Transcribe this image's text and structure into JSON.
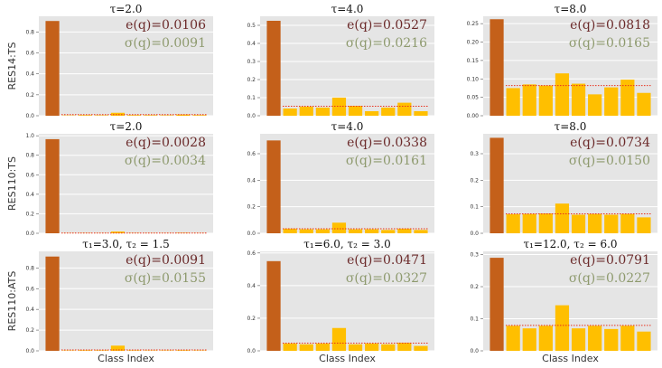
{
  "rows": [
    {
      "label": "RES14:TS"
    },
    {
      "label": "RES110:TS"
    },
    {
      "label": "RES110:ATS"
    }
  ],
  "xlabel": "Class Index",
  "colors": {
    "background": "#e5e5e5",
    "gridline": "#ffffff",
    "first_bar": "#c4601a",
    "other_bars": "#ffbf00",
    "mean_line": "#e8321e",
    "eq_text": "#6b2a2a",
    "sigma_text": "#8e9a6e"
  },
  "chart_data": [
    {
      "type": "bar",
      "row": 0,
      "col": 0,
      "title": "τ=2.0",
      "ylim": [
        0,
        0.95
      ],
      "yticks": [
        0.0,
        0.2,
        0.4,
        0.6,
        0.8
      ],
      "yticklabels": [
        "0.0",
        "0.2",
        "0.4",
        "0.6",
        "0.8"
      ],
      "values": [
        0.905,
        0.003,
        0.006,
        0.004,
        0.028,
        0.006,
        0.005,
        0.004,
        0.012,
        0.006
      ],
      "mean_line": 0.0106,
      "e_q": "e(q)=0.0106",
      "sigma_q": "σ(q)=0.0091"
    },
    {
      "type": "bar",
      "row": 0,
      "col": 1,
      "title": "τ=4.0",
      "ylim": [
        0,
        0.55
      ],
      "yticks": [
        0.0,
        0.1,
        0.2,
        0.3,
        0.4,
        0.5
      ],
      "yticklabels": [
        "0.0",
        "0.1",
        "0.2",
        "0.3",
        "0.4",
        "0.5"
      ],
      "values": [
        0.525,
        0.04,
        0.05,
        0.045,
        0.1,
        0.055,
        0.025,
        0.045,
        0.072,
        0.025
      ],
      "mean_line": 0.0527,
      "e_q": "e(q)=0.0527",
      "sigma_q": "σ(q)=0.0216"
    },
    {
      "type": "bar",
      "row": 0,
      "col": 2,
      "title": "τ=8.0",
      "ylim": [
        0,
        0.27
      ],
      "yticks": [
        0.0,
        0.05,
        0.1,
        0.15,
        0.2,
        0.25
      ],
      "yticklabels": [
        "0.00",
        "0.05",
        "0.10",
        "0.15",
        "0.20",
        "0.25"
      ],
      "values": [
        0.262,
        0.075,
        0.085,
        0.082,
        0.115,
        0.087,
        0.058,
        0.077,
        0.098,
        0.062
      ],
      "mean_line": 0.0818,
      "e_q": "e(q)=0.0818",
      "sigma_q": "σ(q)=0.0165"
    },
    {
      "type": "bar",
      "row": 1,
      "col": 0,
      "title": "τ=2.0",
      "ylim": [
        0,
        1.02
      ],
      "yticks": [
        0.0,
        0.2,
        0.4,
        0.6,
        0.8,
        1.0
      ],
      "yticklabels": [
        "0.0",
        "0.2",
        "0.4",
        "0.6",
        "0.8",
        "1.0"
      ],
      "values": [
        0.965,
        0.002,
        0.003,
        0.002,
        0.018,
        0.003,
        0.002,
        0.002,
        0.005,
        0.002
      ],
      "mean_line": 0.0028,
      "e_q": "e(q)=0.0028",
      "sigma_q": "σ(q)=0.0034"
    },
    {
      "type": "bar",
      "row": 1,
      "col": 1,
      "title": "τ=4.0",
      "ylim": [
        0,
        0.75
      ],
      "yticks": [
        0.0,
        0.2,
        0.4,
        0.6
      ],
      "yticklabels": [
        "0.0",
        "0.2",
        "0.4",
        "0.6"
      ],
      "values": [
        0.7,
        0.035,
        0.03,
        0.03,
        0.08,
        0.03,
        0.03,
        0.025,
        0.035,
        0.025
      ],
      "mean_line": 0.0338,
      "e_q": "e(q)=0.0338",
      "sigma_q": "σ(q)=0.0161"
    },
    {
      "type": "bar",
      "row": 1,
      "col": 2,
      "title": "τ=8.0",
      "ylim": [
        0,
        0.375
      ],
      "yticks": [
        0.0,
        0.1,
        0.2,
        0.3
      ],
      "yticklabels": [
        "0.0",
        "0.1",
        "0.2",
        "0.3"
      ],
      "values": [
        0.36,
        0.072,
        0.073,
        0.075,
        0.112,
        0.07,
        0.073,
        0.07,
        0.073,
        0.06
      ],
      "mean_line": 0.0734,
      "e_q": "e(q)=0.0734",
      "sigma_q": "σ(q)=0.0150"
    },
    {
      "type": "bar",
      "row": 2,
      "col": 0,
      "title": "τ₁=3.0, τ₂ = 1.5",
      "ylim": [
        0,
        0.96
      ],
      "yticks": [
        0.0,
        0.2,
        0.4,
        0.6,
        0.8
      ],
      "yticklabels": [
        "0.0",
        "0.2",
        "0.4",
        "0.6",
        "0.8"
      ],
      "values": [
        0.91,
        0.003,
        0.005,
        0.004,
        0.05,
        0.004,
        0.003,
        0.003,
        0.005,
        0.003
      ],
      "mean_line": 0.0091,
      "e_q": "e(q)=0.0091",
      "sigma_q": "σ(q)=0.0155"
    },
    {
      "type": "bar",
      "row": 2,
      "col": 1,
      "title": "τ₁=6.0, τ₂ = 3.0",
      "ylim": [
        0,
        0.61
      ],
      "yticks": [
        0.0,
        0.2,
        0.4,
        0.6
      ],
      "yticklabels": [
        "0.0",
        "0.2",
        "0.4",
        "0.6"
      ],
      "values": [
        0.55,
        0.045,
        0.04,
        0.045,
        0.14,
        0.04,
        0.045,
        0.04,
        0.05,
        0.03
      ],
      "mean_line": 0.0471,
      "e_q": "e(q)=0.0471",
      "sigma_q": "σ(q)=0.0327"
    },
    {
      "type": "bar",
      "row": 2,
      "col": 2,
      "title": "τ₁=12.0, τ₂ = 6.0",
      "ylim": [
        0,
        0.31
      ],
      "yticks": [
        0.0,
        0.1,
        0.2,
        0.3
      ],
      "yticklabels": [
        "0.0",
        "0.1",
        "0.2",
        "0.3"
      ],
      "values": [
        0.29,
        0.078,
        0.07,
        0.078,
        0.142,
        0.07,
        0.078,
        0.068,
        0.078,
        0.06
      ],
      "mean_line": 0.0791,
      "e_q": "e(q)=0.0791",
      "sigma_q": "σ(q)=0.0227"
    }
  ]
}
